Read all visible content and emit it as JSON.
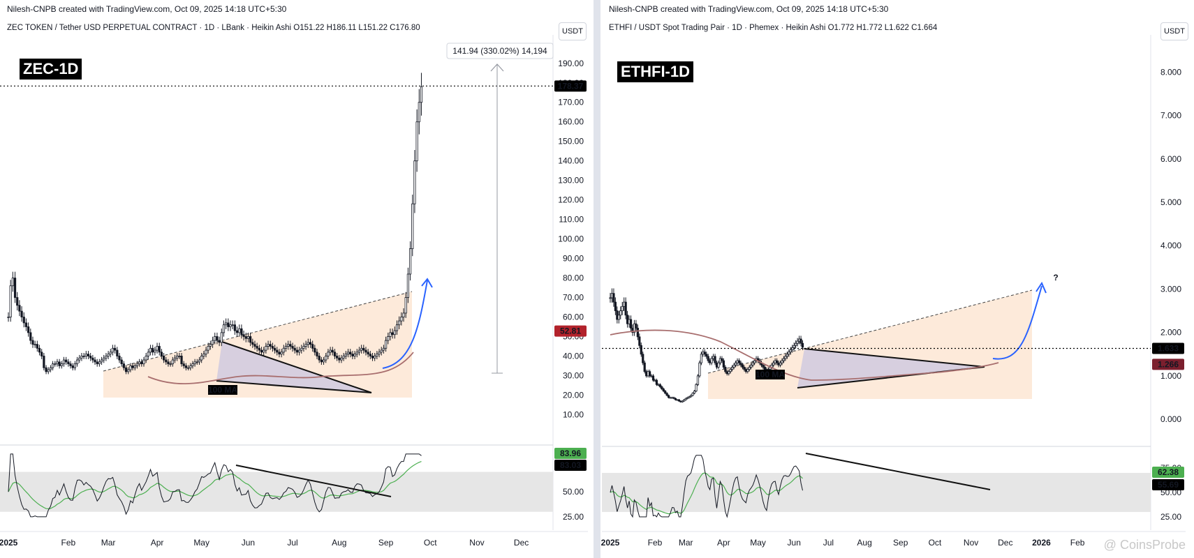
{
  "left": {
    "credit": "Nilesh-CNPB created with TradingView.com, Oct 09, 2025 14:18 UTC+5:30",
    "symbol_line": "ZEC TOKEN / Tether USD PERPETUAL CONTRACT · 1D · LBank · Heikin Ashi  O151.22  H186.11  L151.22  C176.80",
    "currency_button": "USDT",
    "big_label": "ZEC-1D",
    "ma_label": "100 MA",
    "measure_label": "141.94 (330.02%) 14,194",
    "price_badges": [
      {
        "text": "178.37",
        "value": 178.37,
        "bg": "#000000"
      },
      {
        "text": "52.81",
        "value": 52.81,
        "bg": "#b2222b"
      }
    ],
    "rsi_badges": [
      {
        "text": "83.96",
        "value": 83.96,
        "bg": "#4caf50"
      },
      {
        "text": "83.03",
        "value": 83.03,
        "bg": "#000000"
      }
    ]
  },
  "right": {
    "credit": "Nilesh-CNPB created with TradingView.com, Oct 09, 2025 14:18 UTC+5:30",
    "symbol_line": "ETHFI / USDT Spot Trading Pair · 1D · Phemex · Heikin Ashi  O1.772  H1.772  L1.622  C1.664",
    "currency_button": "USDT",
    "big_label": "ETHFI-1D",
    "ma_label": "100 MA",
    "question_mark": "?",
    "price_badges": [
      {
        "text": "1.633",
        "value": 1.633,
        "bg": "#000000"
      },
      {
        "text": "1.266",
        "value": 1.266,
        "bg": "#7b1f2e"
      }
    ],
    "rsi_badges": [
      {
        "text": "62.38",
        "value": 62.38,
        "bg": "#4caf50"
      },
      {
        "text": "55.69",
        "value": 55.69,
        "bg": "#000000"
      }
    ]
  },
  "watermark": "@ CoinsProbe",
  "colors": {
    "candle": "#131722",
    "ma": "#a86e6e",
    "wedge_fill": "#c9c6e0",
    "channel_fill": "#fde6d4",
    "rsi_band": "#e6e6e6",
    "rsi_line": "#131722",
    "rsi_ma": "#4caf50",
    "arrow": "#2962ff"
  },
  "chart_data": [
    {
      "type": "line",
      "title": "ZEC TOKEN / Tether USD PERPETUAL CONTRACT · 1D · LBank · Heikin Ashi",
      "y_ticks": [
        "190.00",
        "180.00",
        "170.00",
        "160.00",
        "150.00",
        "140.00",
        "130.00",
        "120.00",
        "110.00",
        "100.00",
        "90.00",
        "80.00",
        "70.00",
        "60.00",
        "50.00",
        "40.00",
        "30.00",
        "20.00",
        "10.00"
      ],
      "rsi_ticks": [
        "75.00",
        "50.00",
        "25.00"
      ],
      "x_ticks": [
        "2025",
        "Feb",
        "Mar",
        "Apr",
        "May",
        "Jun",
        "Jul",
        "Aug",
        "Sep",
        "Oct",
        "Nov",
        "Dec"
      ],
      "x_tick_index": [
        0,
        27,
        45,
        67,
        87,
        108,
        128,
        149,
        170,
        190,
        211,
        231
      ],
      "ylim": [
        8,
        196
      ],
      "series": [
        {
          "values": [
            60,
            76,
            80,
            70,
            66,
            63,
            60,
            57,
            55,
            52,
            48,
            46,
            46,
            44,
            42,
            40,
            34,
            32,
            33,
            34,
            36,
            36,
            37,
            35,
            36,
            38,
            37,
            36,
            35,
            34,
            36,
            38,
            39,
            40,
            40,
            41,
            40,
            39,
            38,
            37,
            36,
            37,
            38,
            39,
            40,
            41,
            42,
            44,
            43,
            40,
            38,
            36,
            34,
            32,
            33,
            35,
            34,
            35,
            36,
            37,
            36,
            38,
            40,
            42,
            44,
            42,
            43,
            45,
            42,
            40,
            38,
            37,
            36,
            36,
            38,
            39,
            40,
            40,
            36,
            35,
            34,
            34,
            35,
            36,
            37,
            37,
            38,
            40,
            41,
            43,
            45,
            46,
            48,
            50,
            48,
            47,
            52,
            56,
            57,
            55,
            56,
            56,
            53,
            52,
            54,
            51,
            50,
            49,
            50,
            47,
            46,
            45,
            44,
            43,
            42,
            43,
            45,
            46,
            45,
            44,
            43,
            42,
            41,
            42,
            44,
            45,
            46,
            45,
            44,
            43,
            42,
            43,
            44,
            45,
            46,
            47,
            46,
            44,
            42,
            40,
            38,
            37,
            38,
            40,
            42,
            43,
            42,
            40,
            39,
            38,
            39,
            40,
            41,
            42,
            41,
            40,
            41,
            42,
            43,
            44,
            43,
            42,
            41,
            40,
            39,
            40,
            41,
            42,
            43,
            44,
            48,
            50,
            52,
            51,
            53,
            56,
            58,
            60,
            62,
            70,
            82,
            95,
            118,
            140,
            160,
            170,
            178
          ]
        }
      ]
    },
    {
      "type": "line",
      "title": "ETHFI / USDT Spot Trading Pair · 1D · Phemex · Heikin Ashi",
      "y_ticks": [
        "8.000",
        "7.000",
        "6.000",
        "5.000",
        "4.000",
        "3.000",
        "2.000",
        "1.000",
        "0.000"
      ],
      "rsi_ticks": [
        "75.00",
        "50.00",
        "25.00"
      ],
      "x_ticks": [
        "2025",
        "Feb",
        "Mar",
        "Apr",
        "May",
        "Jun",
        "Jul",
        "Aug",
        "Sep",
        "Oct",
        "Nov",
        "Dec",
        "2026",
        "Feb"
      ],
      "x_tick_index": [
        0,
        26,
        44,
        66,
        86,
        107,
        127,
        148,
        169,
        189,
        210,
        230,
        251,
        272
      ],
      "ylim": [
        -0.4,
        8.6
      ],
      "series": [
        {
          "values": [
            2.8,
            2.9,
            2.7,
            2.5,
            2.3,
            2.4,
            2.5,
            2.6,
            2.7,
            2.4,
            2.2,
            2.3,
            2.1,
            2.0,
            2.2,
            2.1,
            1.9,
            1.7,
            1.5,
            1.3,
            1.1,
            1.0,
            1.1,
            1.0,
            1.0,
            0.9,
            0.9,
            0.8,
            0.8,
            0.75,
            0.7,
            0.65,
            0.6,
            0.55,
            0.5,
            0.5,
            0.5,
            0.48,
            0.45,
            0.45,
            0.42,
            0.4,
            0.42,
            0.45,
            0.48,
            0.5,
            0.52,
            0.55,
            0.6,
            0.65,
            0.8,
            1.0,
            1.3,
            1.5,
            1.55,
            1.5,
            1.45,
            1.35,
            1.3,
            1.4,
            1.45,
            1.3,
            1.2,
            1.3,
            1.4,
            1.35,
            1.2,
            1.1,
            1.05,
            1.1,
            1.15,
            1.2,
            1.25,
            1.3,
            1.35,
            1.3,
            1.25,
            1.2,
            1.15,
            1.1,
            1.15,
            1.2,
            1.25,
            1.3,
            1.35,
            1.4,
            1.35,
            1.3,
            1.25,
            1.2,
            1.15,
            1.1,
            1.15,
            1.2,
            1.25,
            1.3,
            1.35,
            1.3,
            1.25,
            1.3,
            1.35,
            1.4,
            1.45,
            1.5,
            1.55,
            1.6,
            1.65,
            1.7,
            1.75,
            1.8,
            1.85,
            1.75,
            1.66
          ]
        }
      ]
    }
  ]
}
